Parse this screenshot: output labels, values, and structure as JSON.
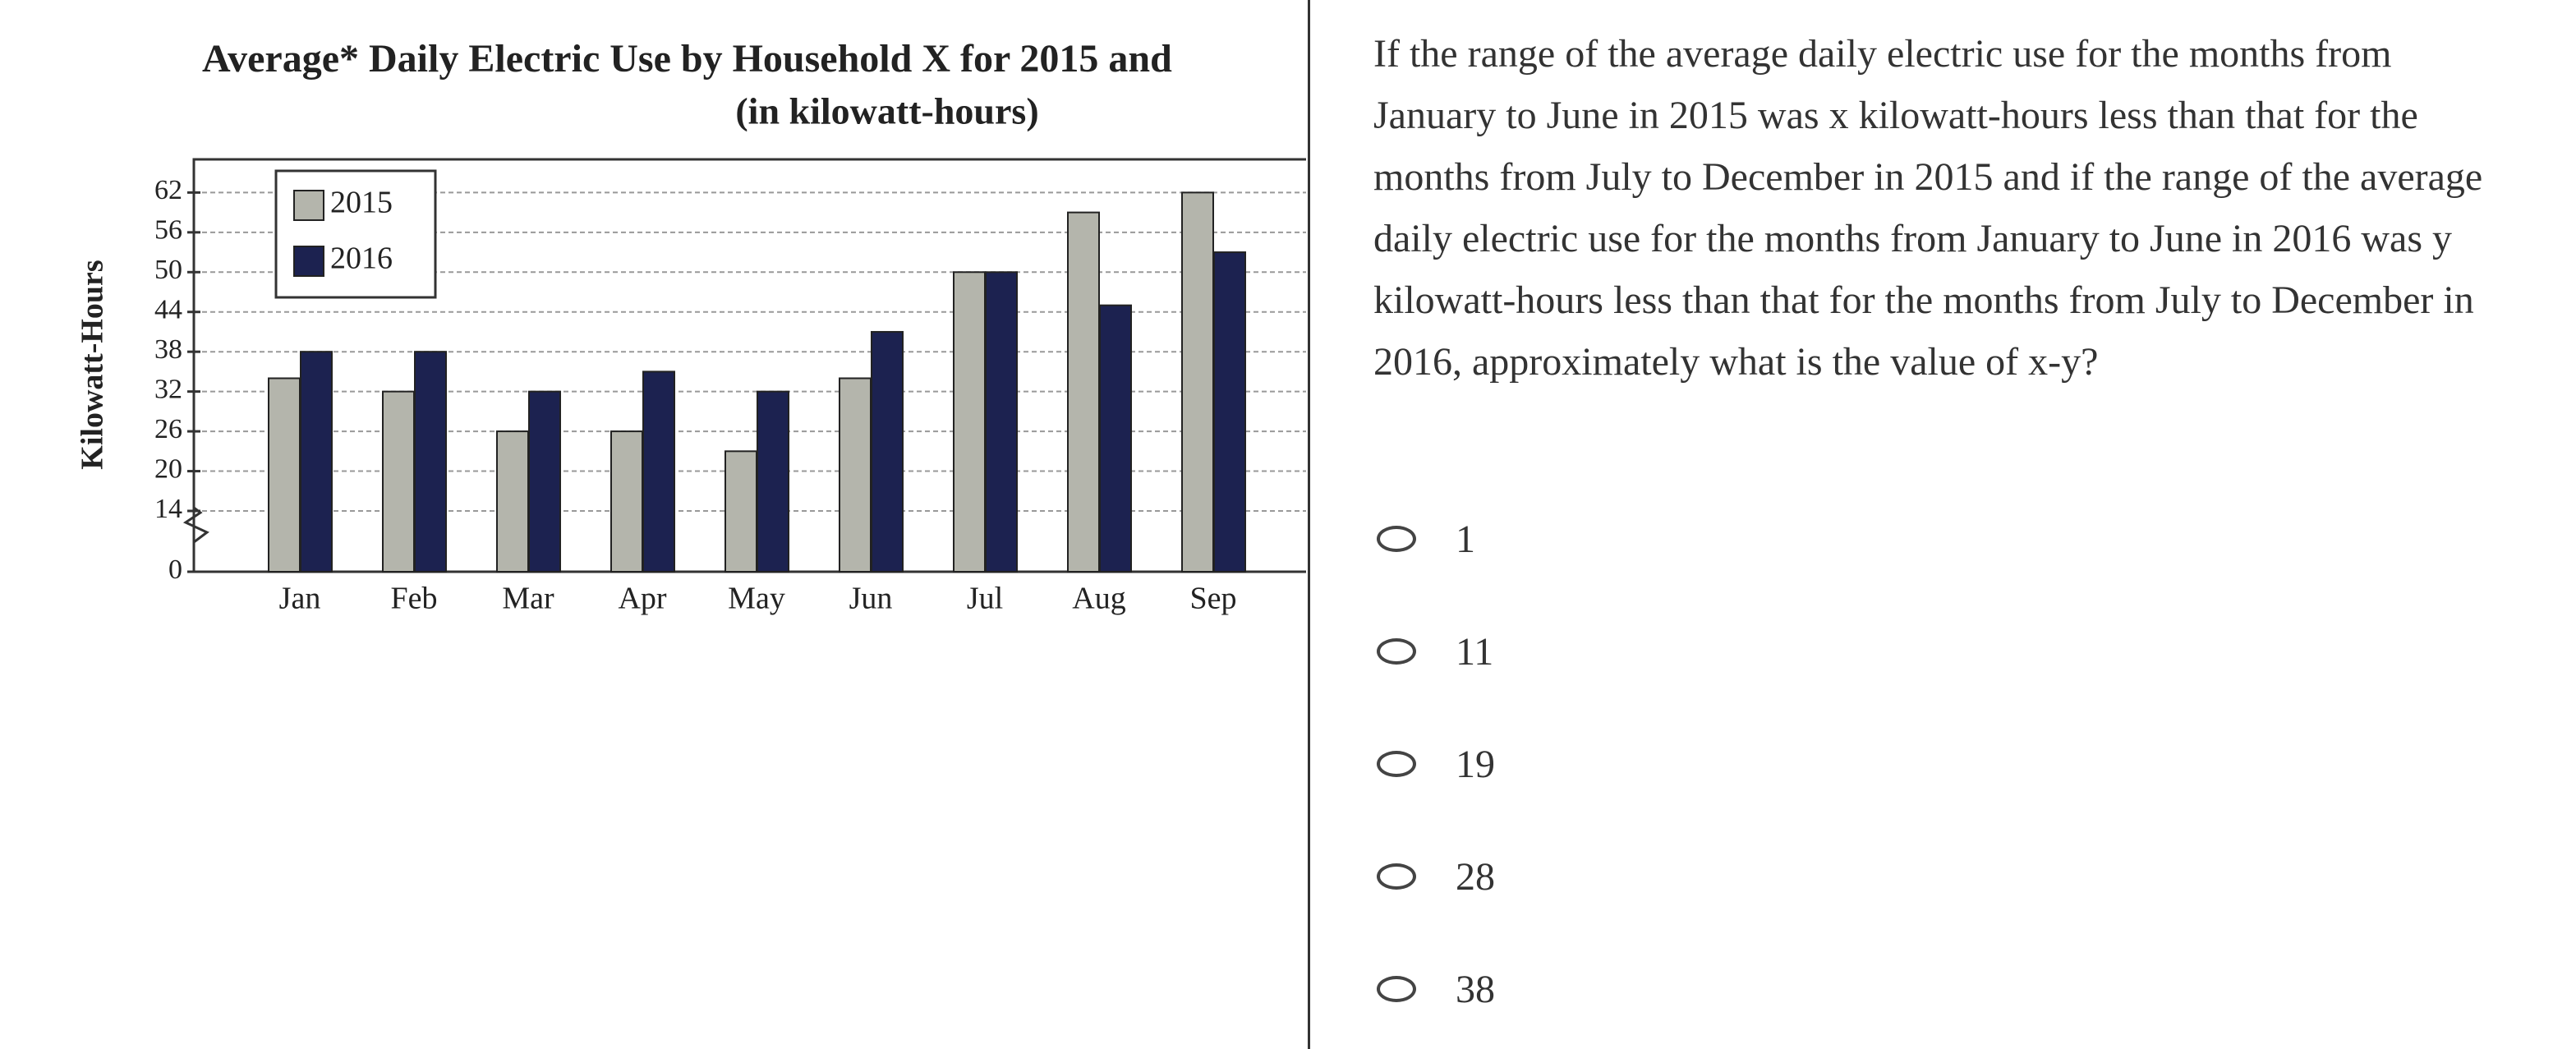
{
  "chart_data": {
    "type": "bar",
    "title": "Average* Daily Electric Use by Household X for 2015 and",
    "subtitle": "(in kilowatt-hours)",
    "y_label": "Kilowatt-Hours",
    "categories": [
      "Jan",
      "Feb",
      "Mar",
      "Apr",
      "May",
      "Jun",
      "Jul",
      "Aug",
      "Sep"
    ],
    "series": [
      {
        "name": "2015",
        "color": "#b4b5ac",
        "values": [
          34,
          32,
          26,
          26,
          23,
          34,
          50,
          59,
          62
        ]
      },
      {
        "name": "2016",
        "color": "#1c2250",
        "values": [
          38,
          38,
          32,
          35,
          32,
          41,
          50,
          45,
          53
        ]
      }
    ],
    "ylim": [
      0,
      67
    ],
    "yticks": [
      0,
      14,
      20,
      26,
      32,
      38,
      44,
      50,
      56,
      62
    ],
    "axis_break": [
      0,
      14
    ],
    "grid": true,
    "legend": "upper left"
  },
  "question": {
    "text": "If the range of the average daily electric use for the months from January to June in 2015 was x kilowatt-hours less than that for the months from July to December in 2015 and if the range of the average daily electric use for the months from January to June in 2016 was y kilowatt-hours less than that for the months from July to December in 2016, approximately what is the value of x-y?",
    "options": [
      1,
      11,
      19,
      28,
      38
    ]
  }
}
